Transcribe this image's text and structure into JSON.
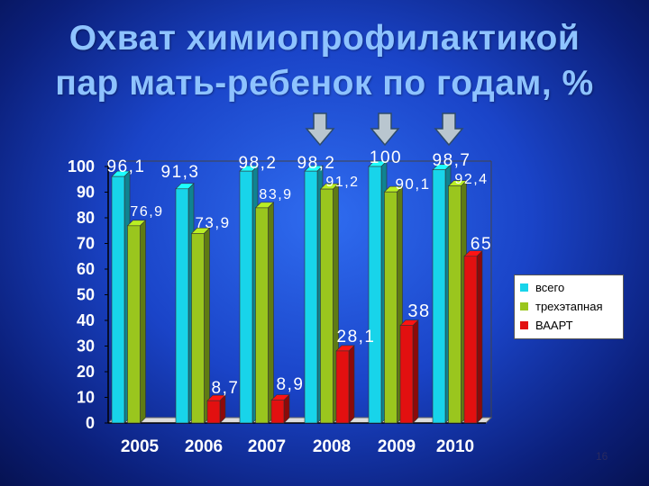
{
  "title_line1": "Охват химиопрофилактикой",
  "title_line2": "пар мать-ребенок по годам, %",
  "slide_number": "16",
  "colors": {
    "series_all": "#18d4ea",
    "series_three": "#9ac61e",
    "series_haart": "#e21010"
  },
  "chart_data": {
    "type": "bar",
    "categories": [
      "2005",
      "2006",
      "2007",
      "2008",
      "2009",
      "2010"
    ],
    "series": [
      {
        "name": "всего",
        "values": [
          96.1,
          91.3,
          98.2,
          98.2,
          100,
          98.7
        ],
        "labels": [
          "96,1",
          "91,3",
          "98,2",
          "98,2",
          "100",
          "98,7"
        ]
      },
      {
        "name": "трехэтапная",
        "values": [
          76.9,
          73.9,
          83.9,
          91.2,
          90.1,
          92.4
        ],
        "labels": [
          "76,9",
          "73,9",
          "83,9",
          "91,2",
          "90,1",
          "92,4"
        ]
      },
      {
        "name": "ВААРТ",
        "values": [
          null,
          8.7,
          8.9,
          28.1,
          38,
          65
        ],
        "labels": [
          "",
          "8,7",
          "8,9",
          "28,1",
          "38",
          "65"
        ]
      }
    ],
    "yticks": [
      "0",
      "10",
      "20",
      "30",
      "40",
      "50",
      "60",
      "70",
      "80",
      "90",
      "100"
    ],
    "ylim": [
      0,
      100
    ],
    "legend_position": "right",
    "highlighted_categories": [
      "2008",
      "2009",
      "2010"
    ],
    "highlight_marker": "down-arrow-icon"
  }
}
